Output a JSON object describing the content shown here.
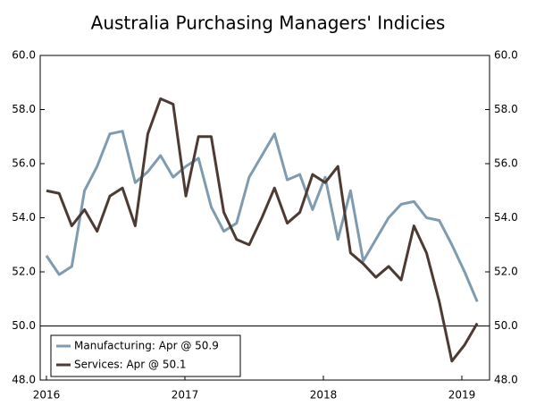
{
  "chart_data": {
    "type": "line",
    "title": "Australia Purchasing Managers' Indicies",
    "x": [
      2016,
      2016.092,
      2016.183,
      2016.275,
      2016.366,
      2016.458,
      2016.549,
      2016.641,
      2016.732,
      2016.824,
      2016.915,
      2017.007,
      2017.098,
      2017.19,
      2017.281,
      2017.373,
      2017.464,
      2017.556,
      2017.647,
      2017.739,
      2017.83,
      2017.922,
      2018.013,
      2018.105,
      2018.196,
      2018.288,
      2018.379,
      2018.471,
      2018.562,
      2018.654,
      2018.745,
      2018.837,
      2018.928,
      2019.02,
      2019.111
    ],
    "series": [
      {
        "name": "Manufacturing: Apr @ 50.9",
        "color": "#7f9bb0",
        "values": [
          52.6,
          51.9,
          52.2,
          55.0,
          55.9,
          57.1,
          57.2,
          55.3,
          55.7,
          56.3,
          55.5,
          55.9,
          56.2,
          54.4,
          53.5,
          53.8,
          55.5,
          56.3,
          57.1,
          55.4,
          55.6,
          54.3,
          55.5,
          53.2,
          55.0,
          52.4,
          53.2,
          54.0,
          54.5,
          54.6,
          54.0,
          53.9,
          53.0,
          52.0,
          50.9
        ]
      },
      {
        "name": "Services: Apr @ 50.1",
        "color": "#4d3b33",
        "values": [
          55.0,
          54.9,
          53.7,
          54.3,
          53.5,
          54.8,
          55.1,
          53.7,
          57.1,
          58.4,
          58.2,
          54.8,
          57.0,
          57.0,
          54.2,
          53.2,
          53.0,
          54.0,
          55.1,
          53.8,
          54.2,
          55.6,
          55.3,
          55.9,
          52.7,
          52.3,
          51.8,
          52.2,
          51.7,
          53.7,
          52.7,
          50.9,
          48.7,
          49.3,
          50.1
        ]
      }
    ],
    "xlim": [
      2015.955,
      2019.2
    ],
    "xticks": [
      2016,
      2017,
      2018,
      2019
    ],
    "ylim": [
      48,
      60
    ],
    "yticks": [
      {
        "value": 48,
        "label": "48.0"
      },
      {
        "value": 50,
        "label": "50.0"
      },
      {
        "value": 52,
        "label": "52.0"
      },
      {
        "value": 54,
        "label": "54.0"
      },
      {
        "value": 56,
        "label": "56.0"
      },
      {
        "value": 58,
        "label": "58.0"
      },
      {
        "value": 60,
        "label": "60.0"
      }
    ],
    "y2lim": [
      48,
      60
    ],
    "y2ticks": [
      {
        "value": 48,
        "label": "48.0"
      },
      {
        "value": 50,
        "label": "50.0"
      },
      {
        "value": 52,
        "label": "52.0"
      },
      {
        "value": 54,
        "label": "54.0"
      },
      {
        "value": 56,
        "label": "56.0"
      },
      {
        "value": 58,
        "label": "58.0"
      },
      {
        "value": 60,
        "label": "60.0"
      }
    ],
    "reference_line": 50,
    "legend": "bottom-left"
  }
}
